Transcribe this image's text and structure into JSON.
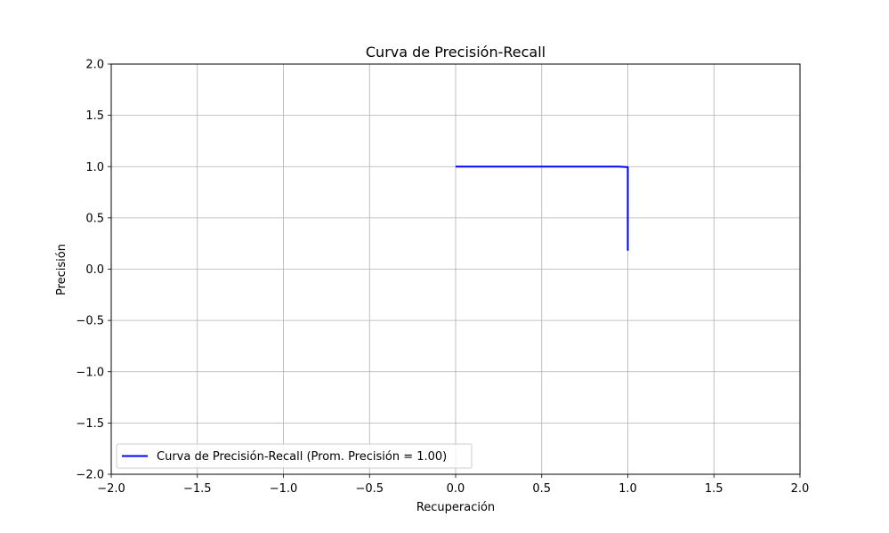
{
  "chart_data": {
    "type": "line",
    "title": "Curva de Precisión-Recall",
    "xlabel": "Recuperación",
    "ylabel": "Precisión",
    "xlim": [
      -2.0,
      2.0
    ],
    "ylim": [
      -2.0,
      2.0
    ],
    "xticks": [
      -2.0,
      -1.5,
      -1.0,
      -0.5,
      0.0,
      0.5,
      1.0,
      1.5,
      2.0
    ],
    "yticks": [
      -2.0,
      -1.5,
      -1.0,
      -0.5,
      0.0,
      0.5,
      1.0,
      1.5,
      2.0
    ],
    "xtick_labels": [
      "−2.0",
      "−1.5",
      "−1.0",
      "−0.5",
      "0.0",
      "0.5",
      "1.0",
      "1.5",
      "2.0"
    ],
    "ytick_labels": [
      "−2.0",
      "−1.5",
      "−1.0",
      "−0.5",
      "0.0",
      "0.5",
      "1.0",
      "1.5",
      "2.0"
    ],
    "grid": true,
    "legend_position": "lower-left",
    "series": [
      {
        "name": "Curva de Precisión-Recall (Prom. Precisión = 1.00)",
        "color": "#0000ff",
        "x": [
          0.0,
          0.95,
          1.0,
          1.0,
          1.0
        ],
        "y": [
          1.0,
          1.0,
          0.995,
          0.995,
          0.18
        ]
      }
    ]
  }
}
